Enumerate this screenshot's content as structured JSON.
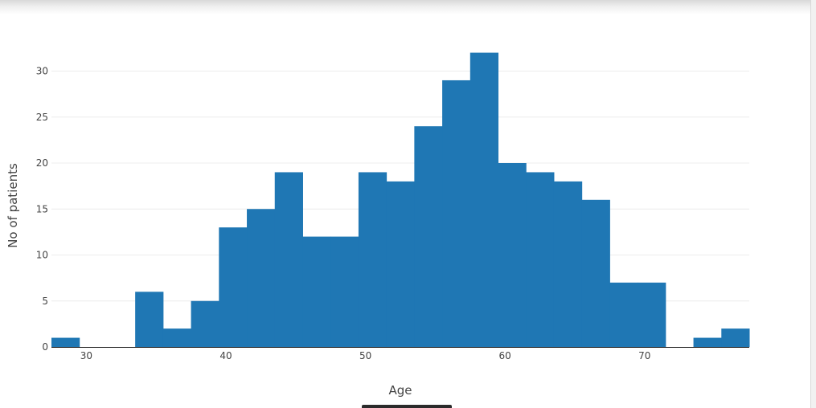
{
  "chart_data": {
    "type": "bar",
    "title": "",
    "xlabel": "Age",
    "ylabel": "No of patients",
    "bin_width": 2,
    "x_start": 27.5,
    "values": [
      1,
      0,
      0,
      6,
      2,
      5,
      13,
      15,
      19,
      12,
      12,
      19,
      18,
      24,
      29,
      32,
      20,
      19,
      18,
      16,
      7,
      7,
      0,
      1,
      2
    ],
    "xlim": [
      27.5,
      77.5
    ],
    "ylim": [
      0,
      32
    ],
    "x_ticks": [
      30,
      40,
      50,
      60,
      70
    ],
    "y_ticks": [
      0,
      5,
      10,
      15,
      20,
      25,
      30
    ],
    "grid": true,
    "bar_color": "#1f77b4"
  }
}
